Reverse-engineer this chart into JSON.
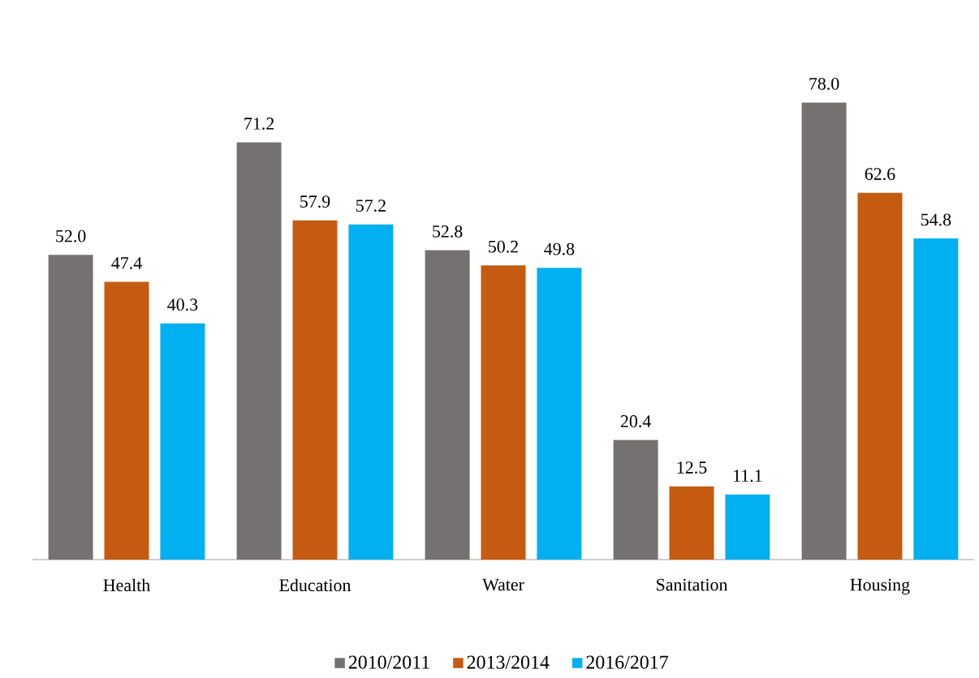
{
  "chart_data": {
    "type": "bar",
    "categories": [
      "Health",
      "Education",
      "Water",
      "Sanitation",
      "Housing"
    ],
    "series": [
      {
        "name": "2010/2011",
        "color": "#767171",
        "values": [
          52.0,
          71.2,
          52.8,
          20.4,
          78.0
        ],
        "value_labels": [
          "52.0",
          "71.2",
          "52.8",
          "20.4",
          "78.0"
        ]
      },
      {
        "name": "2013/2014",
        "color": "#c55a11",
        "values": [
          47.4,
          57.9,
          50.2,
          12.5,
          62.6
        ],
        "value_labels": [
          "47.4",
          "57.9",
          "50.2",
          "12.5",
          "62.6"
        ]
      },
      {
        "name": "2016/2017",
        "color": "#00b0f0",
        "values": [
          40.3,
          57.2,
          49.8,
          11.1,
          54.8
        ],
        "value_labels": [
          "40.3",
          "57.2",
          "49.8",
          "11.1",
          "54.8"
        ]
      }
    ],
    "legend": "bottom",
    "grid": false
  }
}
